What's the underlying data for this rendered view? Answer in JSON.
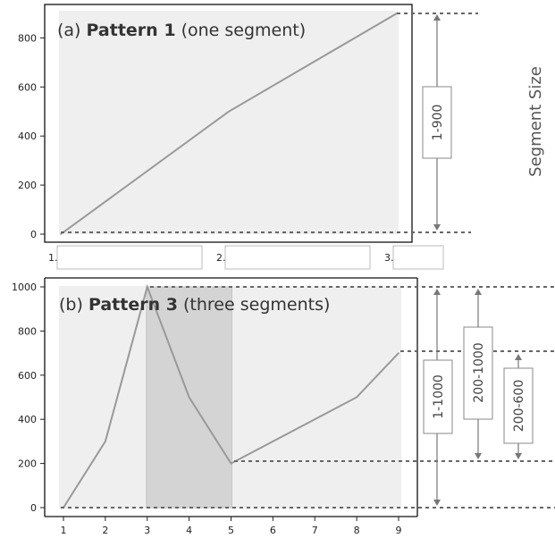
{
  "side_label": "Segment Size",
  "chart_data": [
    {
      "type": "line",
      "panel": "(a)",
      "title_prefix": "(a) ",
      "title_bold": "Pattern 1",
      "title_suffix": " (one segment)",
      "x": [
        1,
        5,
        9
      ],
      "y": [
        0,
        500,
        900
      ],
      "ylim": [
        0,
        900
      ],
      "yticks": [
        0,
        200,
        400,
        600,
        800
      ],
      "xtick_labels": [
        "1.",
        "2.",
        "3."
      ],
      "range_labels": [
        "1-900"
      ],
      "color": "#999999",
      "band_color": "#efefef"
    },
    {
      "type": "line",
      "panel": "(b)",
      "title_prefix": "(b) ",
      "title_bold": "Pattern 3",
      "title_suffix": " (three segments)",
      "x": [
        1,
        2,
        3,
        4,
        5,
        8,
        9
      ],
      "y": [
        0,
        300,
        1000,
        500,
        200,
        500,
        700
      ],
      "ylim": [
        0,
        1000
      ],
      "yticks": [
        0,
        200,
        400,
        600,
        800,
        1000
      ],
      "xticks": [
        1,
        2,
        3,
        4,
        5,
        6,
        7,
        8,
        9
      ],
      "highlight_x": [
        3,
        5
      ],
      "range_labels": [
        "1-1000",
        "200-1000",
        "200-600"
      ],
      "color": "#999999",
      "band_color": "#efefef",
      "highlight_color": "#d4d4d4"
    }
  ]
}
